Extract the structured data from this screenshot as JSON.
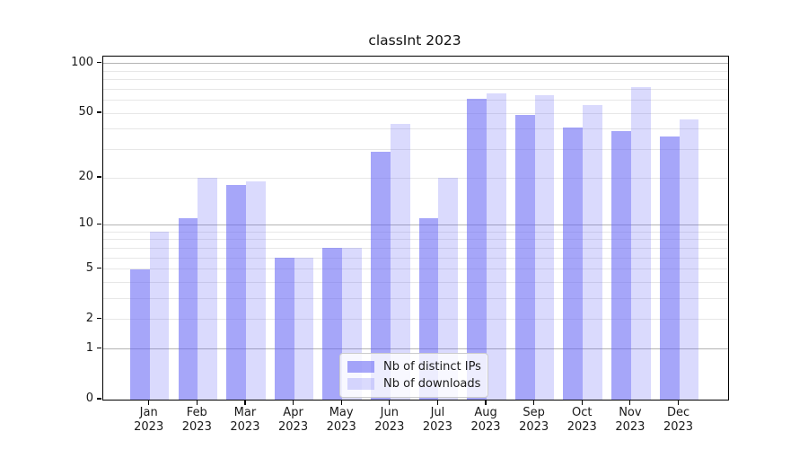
{
  "chart_data": {
    "type": "bar",
    "title": "classInt 2023",
    "categories": [
      "Jan",
      "Feb",
      "Mar",
      "Apr",
      "May",
      "Jun",
      "Jul",
      "Aug",
      "Sep",
      "Oct",
      "Nov",
      "Dec"
    ],
    "category_year_label": "2023",
    "series": [
      {
        "name": "Nb of distinct IPs",
        "color": "rgba(99,99,245,0.57)",
        "values": [
          5,
          11,
          18,
          6,
          7,
          29,
          11,
          61,
          49,
          41,
          39,
          36
        ]
      },
      {
        "name": "Nb of downloads",
        "color": "rgba(99,99,245,0.235)",
        "values": [
          9,
          20,
          19,
          6,
          7,
          43,
          20,
          66,
          64,
          56,
          72,
          46
        ]
      }
    ],
    "y_scale": "log10(1+x)",
    "y_tick_values": [
      0,
      1,
      2,
      5,
      10,
      20,
      50,
      100
    ],
    "y_tick_labels": [
      "0",
      "1",
      "2",
      "5",
      "10",
      "20",
      "50",
      "100"
    ],
    "y_grid_major": [
      1,
      10,
      100
    ],
    "y_grid_minor": [
      2,
      3,
      4,
      5,
      6,
      7,
      8,
      9,
      20,
      30,
      40,
      50,
      60,
      70,
      80,
      90
    ],
    "ylim": [
      0,
      110
    ],
    "grid": true,
    "legend_position": "lower center",
    "colors": {
      "grid_major": "#b4b4b4",
      "grid_minor": "#e7e7e7",
      "axis": "#000000",
      "text": "#1a1a1a",
      "background": "#ffffff"
    }
  }
}
